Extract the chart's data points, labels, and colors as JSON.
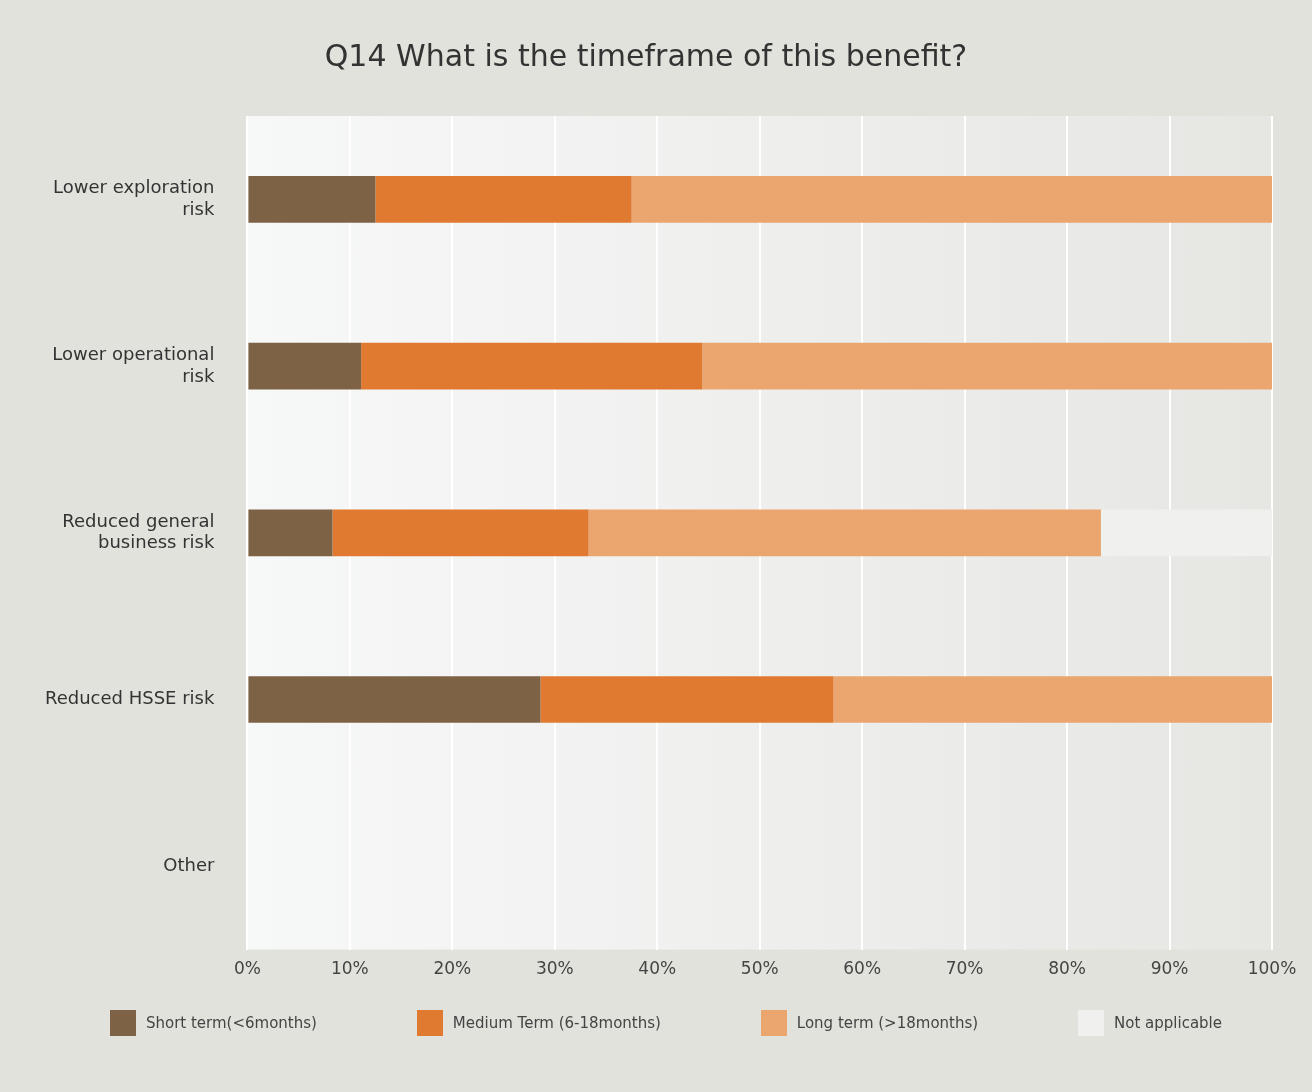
{
  "chart_data": {
    "type": "bar",
    "orientation": "horizontal",
    "stacked": true,
    "title": "Q14 What is the timeframe of this benefit?",
    "categories": [
      "Lower exploration risk",
      "Lower operational risk",
      "Reduced general business risk",
      "Reduced HSSE risk",
      "Other"
    ],
    "series": [
      {
        "name": "Short term(<6months)",
        "color": "#7d6246",
        "values": [
          12.5,
          11.1,
          8.3,
          28.6,
          null
        ]
      },
      {
        "name": "Medium Term (6-18months)",
        "color": "#e07a30",
        "values": [
          25,
          33.3,
          25,
          28.6,
          null
        ]
      },
      {
        "name": "Long term (>18months)",
        "color": "#eba56f",
        "values": [
          62.5,
          55.6,
          50,
          42.8,
          null
        ]
      },
      {
        "name": "Not applicable",
        "color": "#f0f0ee",
        "values": [
          0,
          0,
          16.7,
          0,
          null
        ]
      }
    ],
    "xlim": [
      0,
      100
    ],
    "xticks": [
      {
        "value": 0,
        "label": "0%"
      },
      {
        "value": 10,
        "label": "10%"
      },
      {
        "value": 20,
        "label": "20%"
      },
      {
        "value": 30,
        "label": "30%"
      },
      {
        "value": 40,
        "label": "40%"
      },
      {
        "value": 50,
        "label": "50%"
      },
      {
        "value": 60,
        "label": "60%"
      },
      {
        "value": 70,
        "label": "70%"
      },
      {
        "value": 80,
        "label": "80%"
      },
      {
        "value": 90,
        "label": "90%"
      },
      {
        "value": 100,
        "label": "100%"
      }
    ],
    "grid": "x",
    "legend": "bottom"
  }
}
